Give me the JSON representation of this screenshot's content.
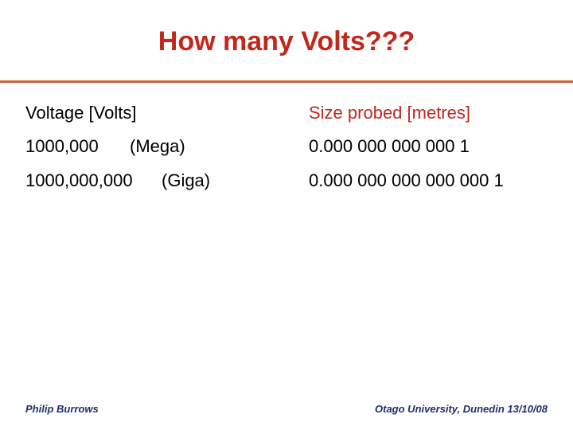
{
  "slide": {
    "title": "How many Volts???",
    "header": {
      "left": "Voltage [Volts]",
      "right": "Size probed [metres]"
    },
    "rows": [
      {
        "voltage": "1000,000",
        "prefix": "(Mega)",
        "size": "0.000 000 000 000 1"
      },
      {
        "voltage": "1000,000,000",
        "prefix": "(Giga)",
        "size": "0.000 000 000 000 000 1"
      }
    ],
    "footer": {
      "left": "Philip Burrows",
      "right": "Otago University, Dunedin 13/10/08"
    }
  },
  "colors": {
    "title": "#c0281e",
    "rule": "#c8653a",
    "footer": "#1f2f6e"
  }
}
